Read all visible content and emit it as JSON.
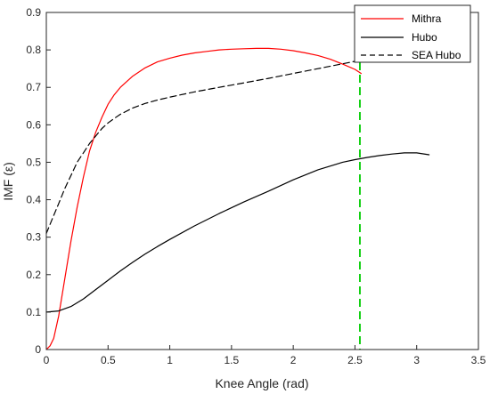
{
  "chart_data": {
    "type": "line",
    "xlabel": "Knee Angle (rad)",
    "ylabel": "IMF (ε)",
    "xlim": [
      0,
      3.5
    ],
    "ylim": [
      0,
      0.9
    ],
    "xticks": [
      "0",
      "0.5",
      "1",
      "1.5",
      "2",
      "2.5",
      "3",
      "3.5"
    ],
    "yticks": [
      "0",
      "0.1",
      "0.2",
      "0.3",
      "0.4",
      "0.5",
      "0.6",
      "0.7",
      "0.8",
      "0.9"
    ],
    "legend_position": "top-right",
    "grid": false,
    "series": [
      {
        "name": "Mithra",
        "color": "#ff0000",
        "dash": "solid",
        "x": [
          0,
          0.03,
          0.06,
          0.1,
          0.15,
          0.2,
          0.25,
          0.3,
          0.35,
          0.4,
          0.45,
          0.5,
          0.55,
          0.6,
          0.7,
          0.8,
          0.9,
          1.0,
          1.1,
          1.2,
          1.3,
          1.4,
          1.5,
          1.6,
          1.7,
          1.75,
          1.8,
          1.9,
          2.0,
          2.1,
          2.2,
          2.3,
          2.4,
          2.5,
          2.55
        ],
        "y": [
          0,
          0.01,
          0.03,
          0.09,
          0.19,
          0.29,
          0.38,
          0.46,
          0.53,
          0.58,
          0.62,
          0.655,
          0.68,
          0.7,
          0.73,
          0.752,
          0.768,
          0.778,
          0.786,
          0.792,
          0.796,
          0.8,
          0.802,
          0.803,
          0.804,
          0.804,
          0.804,
          0.802,
          0.798,
          0.792,
          0.785,
          0.775,
          0.762,
          0.748,
          0.737
        ]
      },
      {
        "name": "Hubo",
        "color": "#000000",
        "dash": "solid",
        "x": [
          0,
          0.1,
          0.2,
          0.3,
          0.4,
          0.5,
          0.6,
          0.7,
          0.8,
          0.9,
          1.0,
          1.2,
          1.4,
          1.6,
          1.8,
          2.0,
          2.2,
          2.4,
          2.5,
          2.6,
          2.7,
          2.8,
          2.9,
          3.0,
          3.1
        ],
        "y": [
          0.1,
          0.103,
          0.115,
          0.135,
          0.16,
          0.185,
          0.21,
          0.233,
          0.255,
          0.275,
          0.294,
          0.33,
          0.363,
          0.394,
          0.423,
          0.453,
          0.48,
          0.5,
          0.507,
          0.513,
          0.518,
          0.522,
          0.525,
          0.525,
          0.52
        ]
      },
      {
        "name": "SEA Hubo",
        "color": "#000000",
        "dash": "dashed",
        "x": [
          0,
          0.05,
          0.1,
          0.15,
          0.2,
          0.25,
          0.3,
          0.35,
          0.4,
          0.45,
          0.5,
          0.55,
          0.6,
          0.7,
          0.8,
          0.9,
          1.0,
          1.2,
          1.4,
          1.6,
          1.8,
          2.0,
          2.2,
          2.4,
          2.6,
          2.8
        ],
        "y": [
          0.31,
          0.35,
          0.39,
          0.43,
          0.465,
          0.5,
          0.525,
          0.55,
          0.57,
          0.59,
          0.605,
          0.617,
          0.628,
          0.645,
          0.657,
          0.666,
          0.674,
          0.688,
          0.7,
          0.712,
          0.724,
          0.737,
          0.75,
          0.763,
          0.776,
          0.79
        ]
      }
    ],
    "reference_lines": [
      {
        "orientation": "vertical",
        "x": 2.54,
        "color": "#00cc00",
        "dash": "dashed"
      }
    ]
  }
}
